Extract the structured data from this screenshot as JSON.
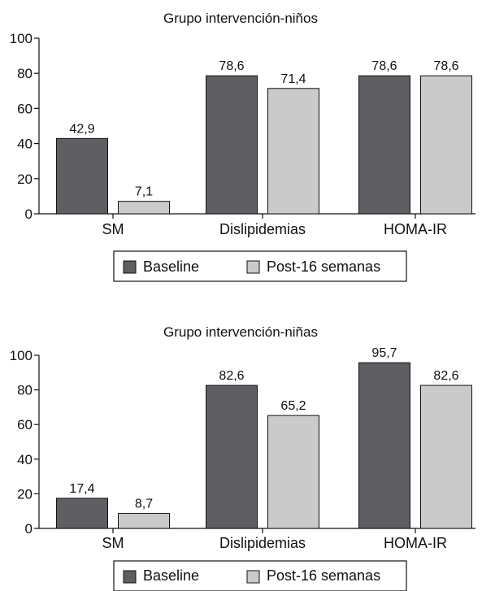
{
  "colors": {
    "baseline": "#5f5f63",
    "post": "#cacaca",
    "stroke": "#111111"
  },
  "chart_data": [
    {
      "type": "bar",
      "title": "Grupo intervención-niños",
      "categories": [
        "SM",
        "Dislipidemias",
        "HOMA-IR"
      ],
      "series": [
        {
          "name": "Baseline",
          "values": [
            42.9,
            78.6,
            78.6
          ],
          "labels": [
            "42,9",
            "78,6",
            "78,6"
          ]
        },
        {
          "name": "Post-16 semanas",
          "values": [
            7.1,
            71.4,
            78.6
          ],
          "labels": [
            "7,1",
            "71,4",
            "78,6"
          ]
        }
      ],
      "ylim": [
        0,
        100
      ],
      "yticks": [
        0,
        20,
        40,
        60,
        80,
        100
      ],
      "grid": false,
      "legend": "bottom"
    },
    {
      "type": "bar",
      "title": "Grupo intervención-niñas",
      "categories": [
        "SM",
        "Dislipidemias",
        "HOMA-IR"
      ],
      "series": [
        {
          "name": "Baseline",
          "values": [
            17.4,
            82.6,
            95.7
          ],
          "labels": [
            "17,4",
            "82,6",
            "95,7"
          ]
        },
        {
          "name": "Post-16 semanas",
          "values": [
            8.7,
            65.2,
            82.6
          ],
          "labels": [
            "8,7",
            "65,2",
            "82,6"
          ]
        }
      ],
      "ylim": [
        0,
        100
      ],
      "yticks": [
        0,
        20,
        40,
        60,
        80,
        100
      ],
      "grid": false,
      "legend": "bottom"
    }
  ]
}
